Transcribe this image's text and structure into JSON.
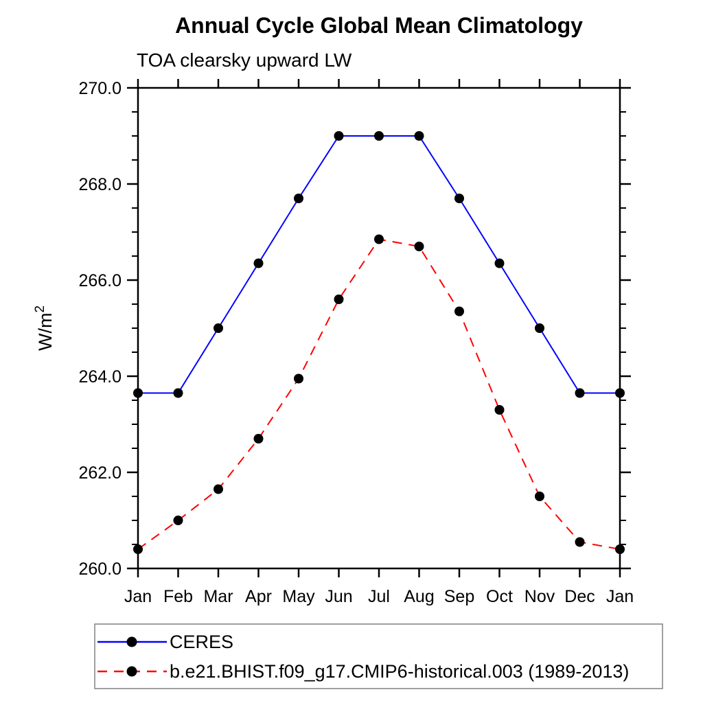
{
  "title": "Annual Cycle Global Mean Climatology",
  "subtitle": "TOA clearsky upward LW",
  "chart_data": {
    "type": "line",
    "categories": [
      "Jan",
      "Feb",
      "Mar",
      "Apr",
      "May",
      "Jun",
      "Jul",
      "Aug",
      "Sep",
      "Oct",
      "Nov",
      "Dec",
      "Jan"
    ],
    "series": [
      {
        "name": "CERES",
        "color": "#0000ff",
        "style": "solid",
        "marker_color": "#000000",
        "values": [
          263.65,
          263.65,
          265.0,
          266.35,
          267.7,
          269.0,
          269.0,
          269.0,
          267.7,
          266.35,
          265.0,
          263.65,
          263.65
        ]
      },
      {
        "name": "b.e21.BHIST.f09_g17.CMIP6-historical.003 (1989-2013)",
        "color": "#ff0000",
        "style": "dashed",
        "marker_color": "#000000",
        "values": [
          260.4,
          261.0,
          261.65,
          262.7,
          263.95,
          265.6,
          266.85,
          266.7,
          265.35,
          263.3,
          261.5,
          260.55,
          260.4
        ]
      }
    ],
    "xlabel": "",
    "ylabel_base": "W/m",
    "ylabel_sup": "2",
    "ylim": [
      260.0,
      270.0
    ],
    "ytick_major_step": 2.0,
    "ytick_minor_step": 0.5,
    "ytick_labels": [
      "260.0",
      "262.0",
      "264.0",
      "266.0",
      "268.0",
      "270.0"
    ],
    "grid": false,
    "legend_position": "bottom-left-box"
  },
  "colors": {
    "axis": "#000000",
    "text": "#000000",
    "legend_border": "#808080",
    "background": "#ffffff",
    "series1": "#0000ff",
    "series2": "#ff0000",
    "marker": "#000000"
  }
}
